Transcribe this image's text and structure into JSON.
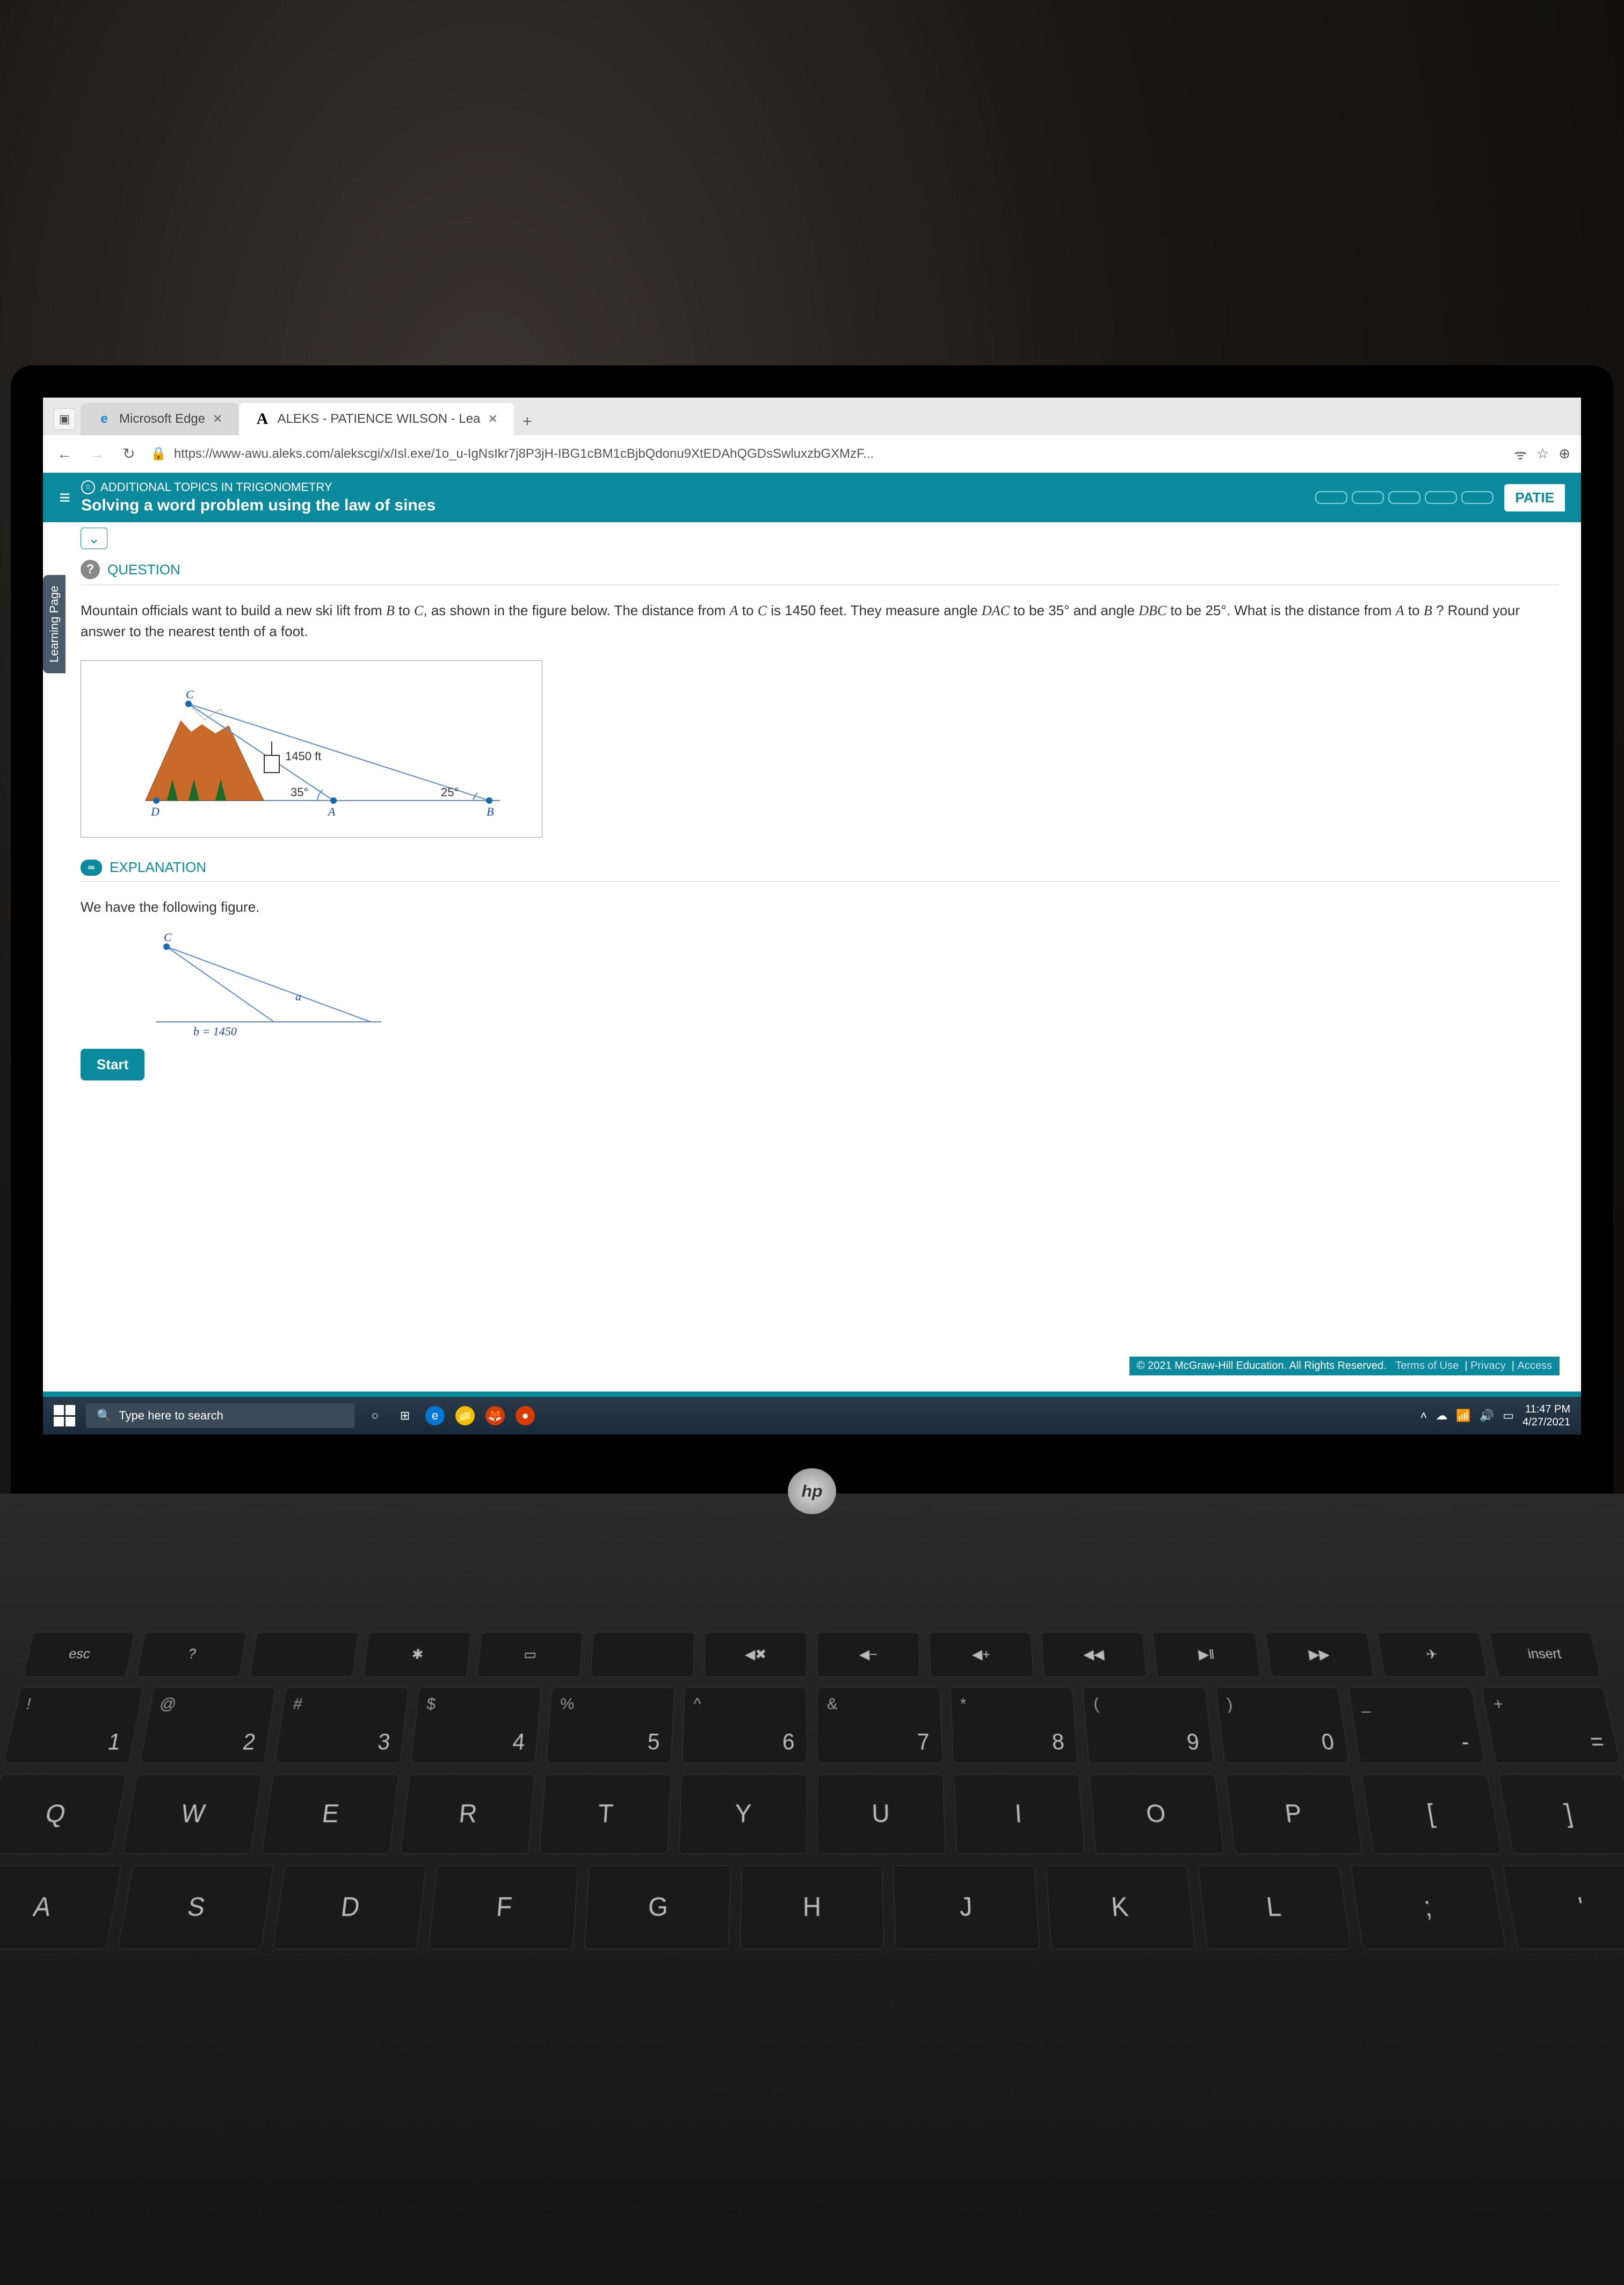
{
  "browser": {
    "tabs": [
      {
        "title": "Microsoft Edge",
        "active": false
      },
      {
        "title": "ALEKS - PATIENCE WILSON - Lea",
        "active": true
      }
    ],
    "url": "https://www-awu.aleks.com/alekscgi/x/Isl.exe/1o_u-IgNsIkr7j8P3jH-IBG1cBM1cBjbQdonu9XtEDAhQGDsSwluxzbGXMzF..."
  },
  "header": {
    "topic": "ADDITIONAL TOPICS IN TRIGONOMETRY",
    "subtitle": "Solving a word problem using the law of sines",
    "user_short": "PATIE"
  },
  "learning_tab": "Learning Page",
  "question": {
    "label": "QUESTION",
    "text_1": "Mountain officials want to build a new ski lift from ",
    "B": "B",
    "to": " to ",
    "C": "C",
    "text_2": ", as shown in the figure below. The distance from ",
    "A": "A",
    "text_3": " is 1450 feet. They measure angle ",
    "DAC": "DAC",
    "text_4": " to be 35° and angle ",
    "DBC": "DBC",
    "text_5": " to be 25°. What is the distance from ",
    "text_6": " ? Round your answer to the nearest tenth of a foot."
  },
  "figure": {
    "dist_label": "1450 ft",
    "angle_a": "35°",
    "angle_b": "25°",
    "pt_c": "C",
    "pt_d": "D",
    "pt_a": "A",
    "pt_b": "B"
  },
  "explanation": {
    "label": "EXPLANATION",
    "intro": "We have the following figure.",
    "b_label": "b = 1450",
    "a_label": "a",
    "c_label": "C"
  },
  "start_btn": "Start",
  "copyright": {
    "text": "© 2021 McGraw-Hill Education. All Rights Reserved.",
    "terms": "Terms of Use",
    "privacy": "Privacy",
    "access": "Access"
  },
  "taskbar": {
    "search_placeholder": "Type here to search",
    "time": "11:47 PM",
    "date": "4/27/2021"
  },
  "hp": "hp",
  "keys": {
    "fn": [
      "esc",
      "?",
      "",
      "✱",
      "▭",
      "",
      "◀✖",
      "◀−",
      "◀+",
      "◀◀",
      "▶‖",
      "▶▶",
      "✈",
      "insert"
    ],
    "num_upper": [
      "!",
      "@",
      "#",
      "$",
      "%",
      "^",
      "&",
      "*",
      "(",
      ")",
      "_",
      "+"
    ],
    "num_lower": [
      "1",
      "2",
      "3",
      "4",
      "5",
      "6",
      "7",
      "8",
      "9",
      "0",
      "-",
      "="
    ],
    "r2": [
      "Q",
      "W",
      "E",
      "R",
      "T",
      "Y",
      "U",
      "I",
      "O",
      "P",
      "[",
      "]"
    ],
    "r3": [
      "A",
      "S",
      "D",
      "F",
      "G",
      "H",
      "J",
      "K",
      "L",
      ";",
      "'"
    ]
  }
}
